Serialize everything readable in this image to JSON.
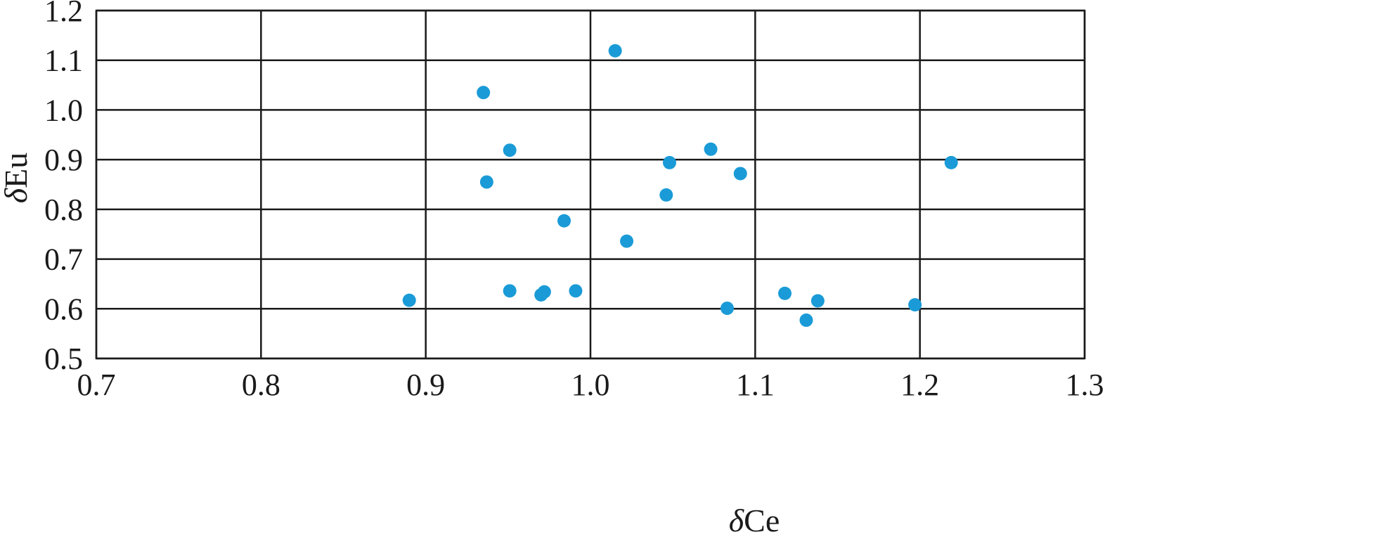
{
  "chart_data": {
    "type": "scatter",
    "title": "",
    "xlabel": "δCe",
    "ylabel": "δEu",
    "xlabel_prefix": "δ",
    "xlabel_suffix": "Ce",
    "ylabel_prefix": "δ",
    "ylabel_suffix": "Eu",
    "xlim": [
      0.7,
      1.3
    ],
    "ylim": [
      0.5,
      1.2
    ],
    "x_ticks": [
      "0.7",
      "0.8",
      "0.9",
      "1.0",
      "1.1",
      "1.2",
      "1.3"
    ],
    "y_ticks": [
      "0.5",
      "0.6",
      "0.7",
      "0.8",
      "0.9",
      "1.0",
      "1.1",
      "1.2"
    ],
    "grid": true,
    "legend": "none",
    "marker_color": "#1a9bd7",
    "series": [
      {
        "points": [
          {
            "x": 0.89,
            "y": 0.617
          },
          {
            "x": 0.935,
            "y": 1.035
          },
          {
            "x": 0.937,
            "y": 0.855
          },
          {
            "x": 0.951,
            "y": 0.919
          },
          {
            "x": 0.951,
            "y": 0.636
          },
          {
            "x": 0.97,
            "y": 0.628
          },
          {
            "x": 0.972,
            "y": 0.634
          },
          {
            "x": 0.984,
            "y": 0.777
          },
          {
            "x": 0.991,
            "y": 0.636
          },
          {
            "x": 1.015,
            "y": 1.119
          },
          {
            "x": 1.022,
            "y": 0.736
          },
          {
            "x": 1.046,
            "y": 0.829
          },
          {
            "x": 1.048,
            "y": 0.894
          },
          {
            "x": 1.073,
            "y": 0.921
          },
          {
            "x": 1.083,
            "y": 0.601
          },
          {
            "x": 1.091,
            "y": 0.872
          },
          {
            "x": 1.118,
            "y": 0.631
          },
          {
            "x": 1.131,
            "y": 0.577
          },
          {
            "x": 1.138,
            "y": 0.616
          },
          {
            "x": 1.197,
            "y": 0.608
          },
          {
            "x": 1.219,
            "y": 0.894
          }
        ]
      }
    ]
  }
}
